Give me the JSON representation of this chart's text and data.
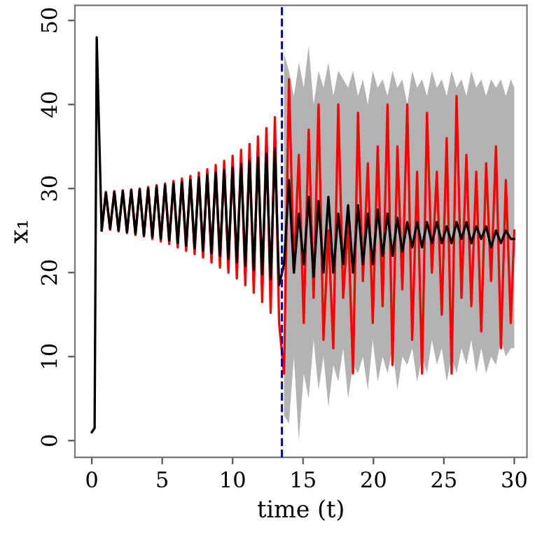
{
  "chart_data": {
    "type": "line",
    "xlabel": "time (t)",
    "ylabel": "x₁",
    "xlim": [
      -1.2,
      30.9
    ],
    "ylim": [
      -2,
      51.8
    ],
    "xticks": [
      0,
      5,
      10,
      15,
      20,
      25,
      30
    ],
    "yticks": [
      0,
      10,
      20,
      30,
      40,
      50
    ],
    "grid": false,
    "legend": false,
    "line_style": "solid",
    "marker": "none",
    "ref_lines": [
      {
        "axis": "x",
        "value": 13.5,
        "color": "#0000cc",
        "line_style": "dashed"
      }
    ],
    "x": [
      0,
      0.2,
      0.35,
      0.7,
      1.0,
      1.3,
      1.6,
      1.9,
      2.2,
      2.5,
      2.8,
      3.1,
      3.4,
      3.7,
      4.0,
      4.3,
      4.6,
      4.9,
      5.2,
      5.5,
      5.8,
      6.1,
      6.4,
      6.7,
      7.0,
      7.3,
      7.6,
      7.9,
      8.2,
      8.5,
      8.8,
      9.1,
      9.4,
      9.7,
      10.0,
      10.3,
      10.6,
      10.9,
      11.2,
      11.5,
      11.8,
      12.1,
      12.4,
      12.7,
      13.0,
      13.3,
      13.65,
      14.0,
      14.35,
      14.7,
      15.05,
      15.4,
      15.75,
      16.1,
      16.45,
      16.8,
      17.15,
      17.5,
      17.85,
      18.2,
      18.55,
      18.9,
      19.25,
      19.6,
      19.95,
      20.3,
      20.65,
      21.0,
      21.35,
      21.7,
      22.05,
      22.4,
      22.75,
      23.1,
      23.45,
      23.8,
      24.15,
      24.5,
      24.85,
      25.2,
      25.55,
      25.9,
      26.25,
      26.6,
      26.95,
      27.3,
      27.65,
      28.0,
      28.35,
      28.7,
      29.05,
      29.4,
      29.75,
      30.0
    ],
    "series": [
      {
        "color": "#ff0000",
        "values": [
          null,
          null,
          null,
          25,
          29.6,
          25.1,
          29.7,
          24.9,
          29.8,
          24.7,
          29.9,
          24.5,
          30.0,
          24.3,
          30.2,
          24.0,
          30.4,
          23.7,
          30.6,
          23.4,
          30.9,
          23.0,
          31.2,
          22.6,
          31.5,
          22.2,
          31.9,
          21.8,
          32.3,
          21.2,
          32.8,
          20.6,
          33.3,
          20.0,
          33.9,
          19.3,
          34.6,
          18.5,
          35.3,
          17.6,
          36.2,
          16.5,
          37.2,
          15.2,
          38.5,
          14.0,
          8,
          43,
          20,
          34,
          14,
          37,
          17,
          40,
          12,
          25,
          11,
          40,
          17,
          26,
          8,
          39,
          19,
          33,
          14,
          35,
          16,
          40,
          9,
          35,
          18,
          40,
          12,
          32,
          8,
          39,
          20,
          32,
          15,
          36,
          8,
          41,
          17,
          34,
          16,
          32,
          13,
          33,
          19,
          35,
          11,
          31,
          14,
          25
        ]
      },
      {
        "color": "#000000",
        "values": [
          1,
          1.5,
          48,
          25,
          29.5,
          25.2,
          29.6,
          25.0,
          29.7,
          24.8,
          29.8,
          24.6,
          29.9,
          24.4,
          30.0,
          24.2,
          30.2,
          24.0,
          30.4,
          23.8,
          30.6,
          23.5,
          30.8,
          23.2,
          31.0,
          22.9,
          31.3,
          22.6,
          31.6,
          22.3,
          31.9,
          22.0,
          32.2,
          21.6,
          32.5,
          21.2,
          32.9,
          20.8,
          33.3,
          20.3,
          33.7,
          19.8,
          34.2,
          19.2,
          34.8,
          18.5,
          21,
          31,
          20,
          27,
          21,
          29,
          19.5,
          28.5,
          20,
          29,
          20,
          27,
          21,
          28,
          20,
          28,
          21,
          27,
          21,
          27.5,
          22,
          27,
          22,
          26.5,
          22.5,
          26,
          23,
          26,
          23,
          26,
          23.5,
          26,
          23.5,
          25.5,
          23.5,
          26,
          24,
          26,
          23.5,
          25.5,
          24,
          25.5,
          23,
          25,
          23.5,
          25,
          24,
          24
        ],
        "upper": [
          null,
          null,
          null,
          null,
          null,
          null,
          null,
          null,
          null,
          null,
          null,
          null,
          null,
          null,
          null,
          null,
          null,
          null,
          null,
          null,
          null,
          null,
          null,
          null,
          null,
          null,
          null,
          null,
          null,
          null,
          null,
          null,
          null,
          null,
          null,
          null,
          null,
          null,
          null,
          null,
          null,
          null,
          null,
          null,
          null,
          null,
          46,
          44,
          41,
          45,
          42,
          47,
          40,
          44,
          42,
          45,
          41,
          44,
          43,
          42,
          44,
          41,
          43,
          40,
          44,
          42,
          43,
          41,
          44,
          42,
          43,
          40,
          44,
          42,
          43,
          41,
          44,
          42,
          43,
          41,
          44,
          42,
          43,
          41,
          44,
          42,
          43,
          41,
          43,
          42,
          43,
          41,
          43,
          42
        ],
        "lower": [
          null,
          null,
          null,
          null,
          null,
          null,
          null,
          null,
          null,
          null,
          null,
          null,
          null,
          null,
          null,
          null,
          null,
          null,
          null,
          null,
          null,
          null,
          null,
          null,
          null,
          null,
          null,
          null,
          null,
          null,
          null,
          null,
          null,
          null,
          null,
          null,
          null,
          null,
          null,
          null,
          null,
          null,
          null,
          null,
          null,
          null,
          3,
          2,
          10,
          0,
          8,
          5,
          12,
          6,
          10,
          4,
          9,
          7,
          11,
          5,
          9,
          8,
          10,
          6,
          12,
          7,
          10,
          8,
          11,
          6,
          10,
          9,
          11,
          7,
          10,
          8,
          12,
          9,
          11,
          7,
          10,
          8,
          11,
          9,
          12,
          8,
          11,
          8,
          10,
          9,
          12,
          10,
          11,
          11
        ]
      }
    ]
  }
}
